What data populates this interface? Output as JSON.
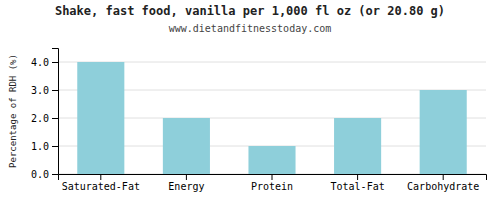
{
  "chart_data": {
    "type": "bar",
    "title": "Shake, fast food, vanilla per 1,000 fl oz (or 20.80 g)",
    "subtitle": "www.dietandfitnesstoday.com",
    "categories": [
      "Saturated-Fat",
      "Energy",
      "Protein",
      "Total-Fat",
      "Carbohydrate"
    ],
    "values": [
      4.0,
      2.0,
      1.0,
      2.0,
      3.0
    ],
    "color": "#8ECFDA",
    "ylabel": "Percentage of RDH (%)",
    "ylim": [
      0,
      4.5
    ],
    "yticks": [
      {
        "value": 0.0,
        "label": "0.0"
      },
      {
        "value": 1.0,
        "label": "1.0"
      },
      {
        "value": 2.0,
        "label": "2.0"
      },
      {
        "value": 3.0,
        "label": "3.0"
      },
      {
        "value": 4.0,
        "label": "4.0"
      }
    ],
    "grid": true
  }
}
